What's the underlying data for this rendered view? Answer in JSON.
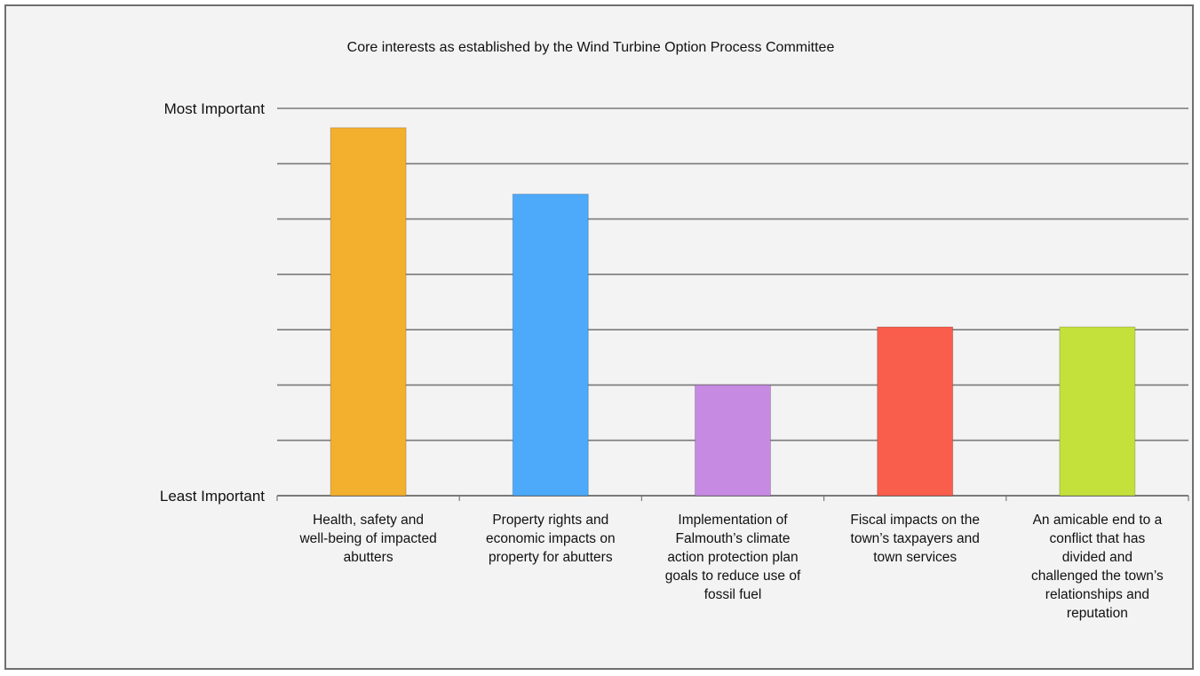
{
  "chart_data": {
    "type": "bar",
    "title": "Core interests as established by the Wind Turbine Option Process Committee",
    "xlabel": "",
    "ylabel": "",
    "ylim": [
      0,
      7
    ],
    "y_tick_labels": [
      {
        "value": 7,
        "label": "Most Important"
      },
      {
        "value": 0,
        "label": "Least Important"
      }
    ],
    "grid": true,
    "categories": [
      "Health, safety and well-being of impacted abutters",
      "Property rights and economic impacts on property for abutters",
      "Implementation of Falmouth’s climate action protection plan goals to reduce use of fossil fuel",
      "Fiscal impacts on the town’s taxpayers and town services",
      "An amicable end to a conflict that has divided and challenged the town’s relationships and reputation"
    ],
    "category_lines": [
      [
        "Health, safety and",
        "well-being of impacted",
        "abutters"
      ],
      [
        "Property rights and",
        "economic impacts on",
        "property for abutters"
      ],
      [
        "Implementation of",
        "Falmouth’s climate",
        "action protection plan",
        "goals to reduce use of",
        "fossil fuel"
      ],
      [
        "Fiscal impacts on the",
        "town’s taxpayers and",
        "town services"
      ],
      [
        "An amicable end to a",
        "conflict that has",
        "divided and",
        "challenged the town’s",
        "relationships and",
        "reputation"
      ]
    ],
    "values": [
      6.65,
      5.45,
      2.0,
      3.05,
      3.05
    ],
    "colors": [
      "#f3af2e",
      "#4da9f9",
      "#c78ae3",
      "#f95d4c",
      "#c4e03b"
    ]
  }
}
